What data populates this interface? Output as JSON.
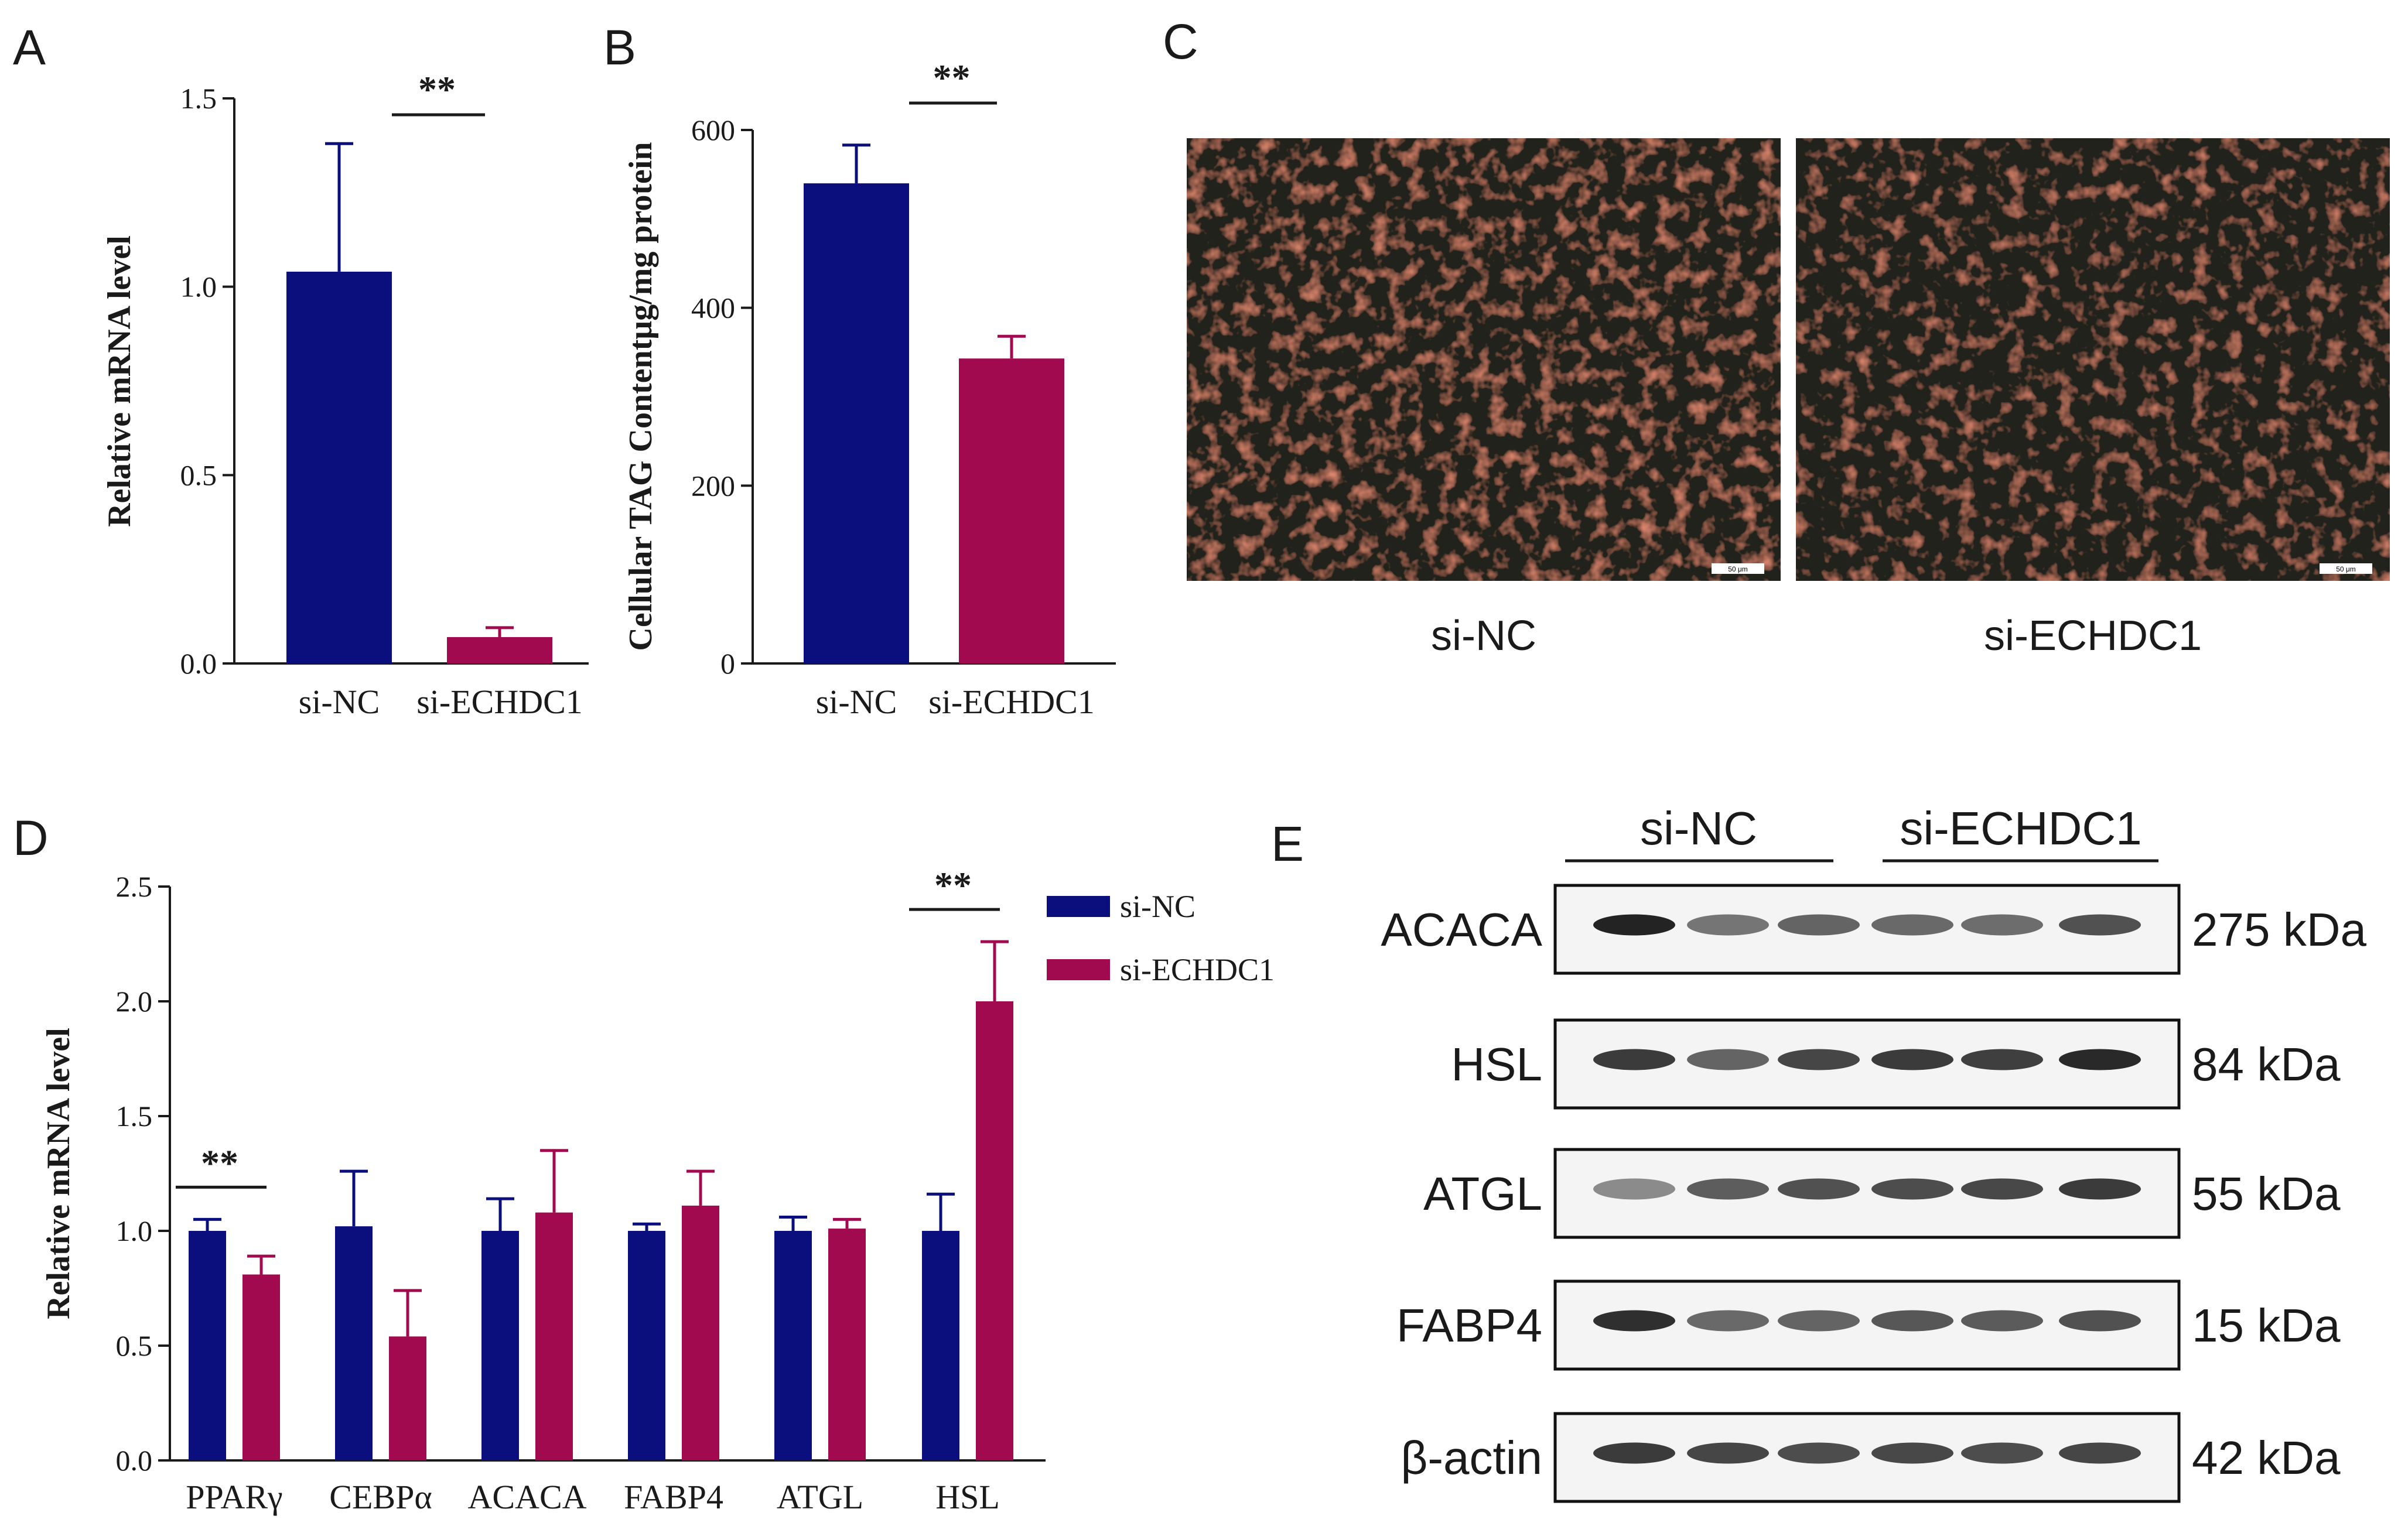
{
  "panels": {
    "A": "A",
    "B": "B",
    "C": "C",
    "D": "D",
    "E": "E"
  },
  "colors": {
    "si_nc": "#0b0f7d",
    "si_echdc1": "#a10a4e"
  },
  "chart_data": [
    {
      "id": "A",
      "type": "bar",
      "categories": [
        "si-NC",
        "si-ECHDC1"
      ],
      "values": [
        1.04,
        0.07
      ],
      "errors": [
        0.34,
        0.025
      ],
      "ylabel": "Relative mRNA level",
      "ylim": [
        0,
        1.5
      ],
      "yticks": [
        "0.0",
        "0.5",
        "1.0",
        "1.5"
      ],
      "ytick_values": [
        0,
        0.5,
        1.0,
        1.5
      ],
      "significance": "**"
    },
    {
      "id": "B",
      "type": "bar",
      "categories": [
        "si-NC",
        "si-ECHDC1"
      ],
      "values": [
        540,
        343
      ],
      "errors": [
        43,
        25
      ],
      "ylabel": "Cellular TAG Contentμg/mg protein",
      "ylim": [
        0,
        600
      ],
      "yticks": [
        "0",
        "200",
        "400",
        "600"
      ],
      "ytick_values": [
        0,
        200,
        400,
        600
      ],
      "significance": "**"
    },
    {
      "id": "D",
      "type": "bar",
      "categories": [
        "PPARγ",
        "CEBPα",
        "ACACA",
        "FABP4",
        "ATGL",
        "HSL"
      ],
      "series": [
        {
          "name": "si-NC",
          "values": [
            1.0,
            1.02,
            1.0,
            1.0,
            1.0,
            1.0
          ],
          "errors": [
            0.05,
            0.24,
            0.14,
            0.03,
            0.06,
            0.16
          ]
        },
        {
          "name": "si-ECHDC1",
          "values": [
            0.81,
            0.54,
            1.08,
            1.11,
            1.01,
            2.0
          ],
          "errors": [
            0.08,
            0.2,
            0.27,
            0.15,
            0.04,
            0.26
          ]
        }
      ],
      "ylabel": "Relative mRNA level",
      "ylim": [
        0,
        2.5
      ],
      "yticks": [
        "0.0",
        "0.5",
        "1.0",
        "1.5",
        "2.0",
        "2.5"
      ],
      "ytick_values": [
        0,
        0.5,
        1.0,
        1.5,
        2.0,
        2.5
      ],
      "significance": [
        {
          "category": "PPARγ",
          "label": "**"
        },
        {
          "category": "HSL",
          "label": "**"
        }
      ],
      "legend": "top-right"
    }
  ],
  "panel_C": {
    "images": [
      {
        "label": "si-NC",
        "scale_bar": "50 μm"
      },
      {
        "label": "si-ECHDC1",
        "scale_bar": "50 μm"
      }
    ]
  },
  "panel_E": {
    "groups": [
      "si-NC",
      "si-ECHDC1"
    ],
    "blots": [
      {
        "protein": "ACACA",
        "size": "275 kDa"
      },
      {
        "protein": "HSL",
        "size": "84 kDa"
      },
      {
        "protein": "ATGL",
        "size": "55 kDa"
      },
      {
        "protein": "FABP4",
        "size": "15 kDa"
      },
      {
        "protein": "β-actin",
        "size": "42 kDa"
      }
    ]
  }
}
